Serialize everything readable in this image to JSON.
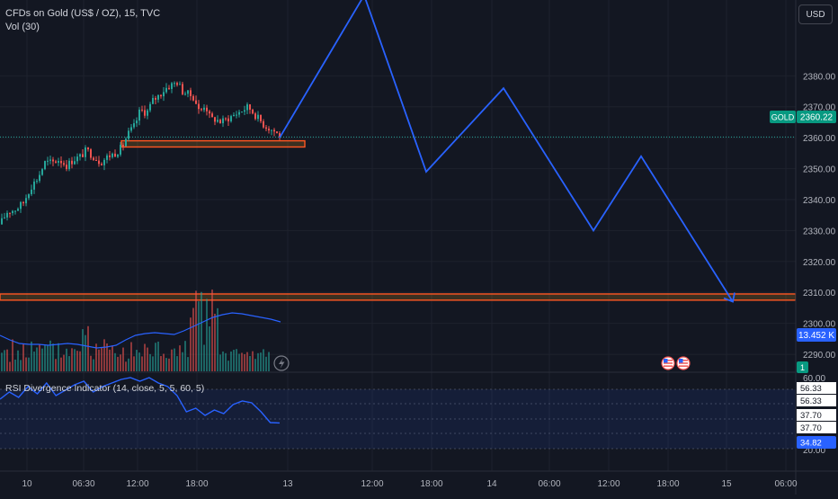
{
  "symbol_title": "CFDs on Gold (US$ / OZ), 15, TVC",
  "volume_label": "Vol (30)",
  "currency_button": "USD",
  "symbol_tag": "GOLD",
  "last_price": "2360.22",
  "volume_value": "13.452 K",
  "pane_badge": "1",
  "rsi_title": "RSI Divergence Indicator (14, close, 5, 5, 60, 5)",
  "rsi_tags": [
    "56.33",
    "56.33",
    "37.70",
    "37.70",
    "34.82"
  ],
  "colors": {
    "background": "#131722",
    "up": "#26a69a",
    "down": "#ef5350",
    "projection": "#2962ff",
    "zone_fill": "#f5a623",
    "zone_border": "#ff5722",
    "price_tag": "#089981",
    "rsi_line": "#2962ff",
    "volume_ma": "#2962ff"
  },
  "chart_data": {
    "type": "candlestick",
    "price_axis": {
      "ticks": [
        2290,
        2300,
        2310,
        2320,
        2330,
        2340,
        2350,
        2360,
        2370,
        2380
      ],
      "ylim": [
        2284.5,
        2404.5
      ]
    },
    "time_axis": {
      "labels": [
        "10",
        "06:30",
        "12:00",
        "18:00",
        "13",
        "12:00",
        "18:00",
        "14",
        "06:00",
        "12:00",
        "18:00",
        "15",
        "06:00"
      ]
    },
    "rsi_axis": {
      "ticks": [
        60,
        20
      ]
    },
    "candle_path": [
      [
        0,
        2332
      ],
      [
        8,
        2336
      ],
      [
        18,
        2337
      ],
      [
        26,
        2339
      ],
      [
        34,
        2344
      ],
      [
        42,
        2347
      ],
      [
        50,
        2352
      ],
      [
        58,
        2352
      ],
      [
        66,
        2353
      ],
      [
        74,
        2351
      ],
      [
        82,
        2353
      ],
      [
        90,
        2354
      ],
      [
        96,
        2356
      ],
      [
        104,
        2354
      ],
      [
        112,
        2352
      ],
      [
        120,
        2354
      ],
      [
        128,
        2355
      ],
      [
        136,
        2357
      ],
      [
        142,
        2361
      ],
      [
        150,
        2364
      ],
      [
        156,
        2369
      ],
      [
        163,
        2368
      ],
      [
        170,
        2372
      ],
      [
        178,
        2374
      ],
      [
        184,
        2376
      ],
      [
        190,
        2377
      ],
      [
        197,
        2378
      ],
      [
        203,
        2375
      ],
      [
        210,
        2374
      ],
      [
        216,
        2373
      ],
      [
        222,
        2368
      ],
      [
        228,
        2371
      ],
      [
        234,
        2366
      ],
      [
        240,
        2366
      ],
      [
        246,
        2365
      ],
      [
        252,
        2366
      ],
      [
        258,
        2367
      ],
      [
        264,
        2368
      ],
      [
        270,
        2369
      ],
      [
        276,
        2370
      ],
      [
        282,
        2368
      ],
      [
        288,
        2366
      ],
      [
        294,
        2364
      ],
      [
        300,
        2363
      ],
      [
        306,
        2362
      ],
      [
        311,
        2360.22
      ]
    ],
    "projection": {
      "label": "",
      "points": [
        [
          311,
          2360
        ],
        [
          405,
          2406
        ],
        [
          474,
          2349
        ],
        [
          560,
          2376
        ],
        [
          660,
          2330
        ],
        [
          713,
          2354
        ],
        [
          815,
          2307
        ]
      ]
    },
    "zones": [
      {
        "x1": 135,
        "x2": 339,
        "y_top": 2359,
        "y_bottom": 2357
      },
      {
        "x1": 0,
        "x2": 885,
        "y_top": 2309.5,
        "y_bottom": 2307.5
      }
    ],
    "volume": {
      "values": [
        40,
        35,
        31,
        30,
        30,
        29,
        30,
        31,
        30,
        28,
        26,
        27,
        29,
        35,
        40,
        42,
        43,
        42,
        41,
        45,
        50,
        55,
        60,
        63,
        65,
        64,
        62,
        60,
        58,
        55
      ]
    },
    "rsi": {
      "values": [
        48,
        52,
        49,
        55,
        51,
        57,
        50,
        53,
        56,
        58,
        52,
        55,
        57,
        59,
        60,
        58,
        60,
        57,
        55,
        50,
        41,
        43,
        39,
        42,
        40,
        45,
        47,
        46,
        41,
        35,
        34.82
      ]
    }
  }
}
